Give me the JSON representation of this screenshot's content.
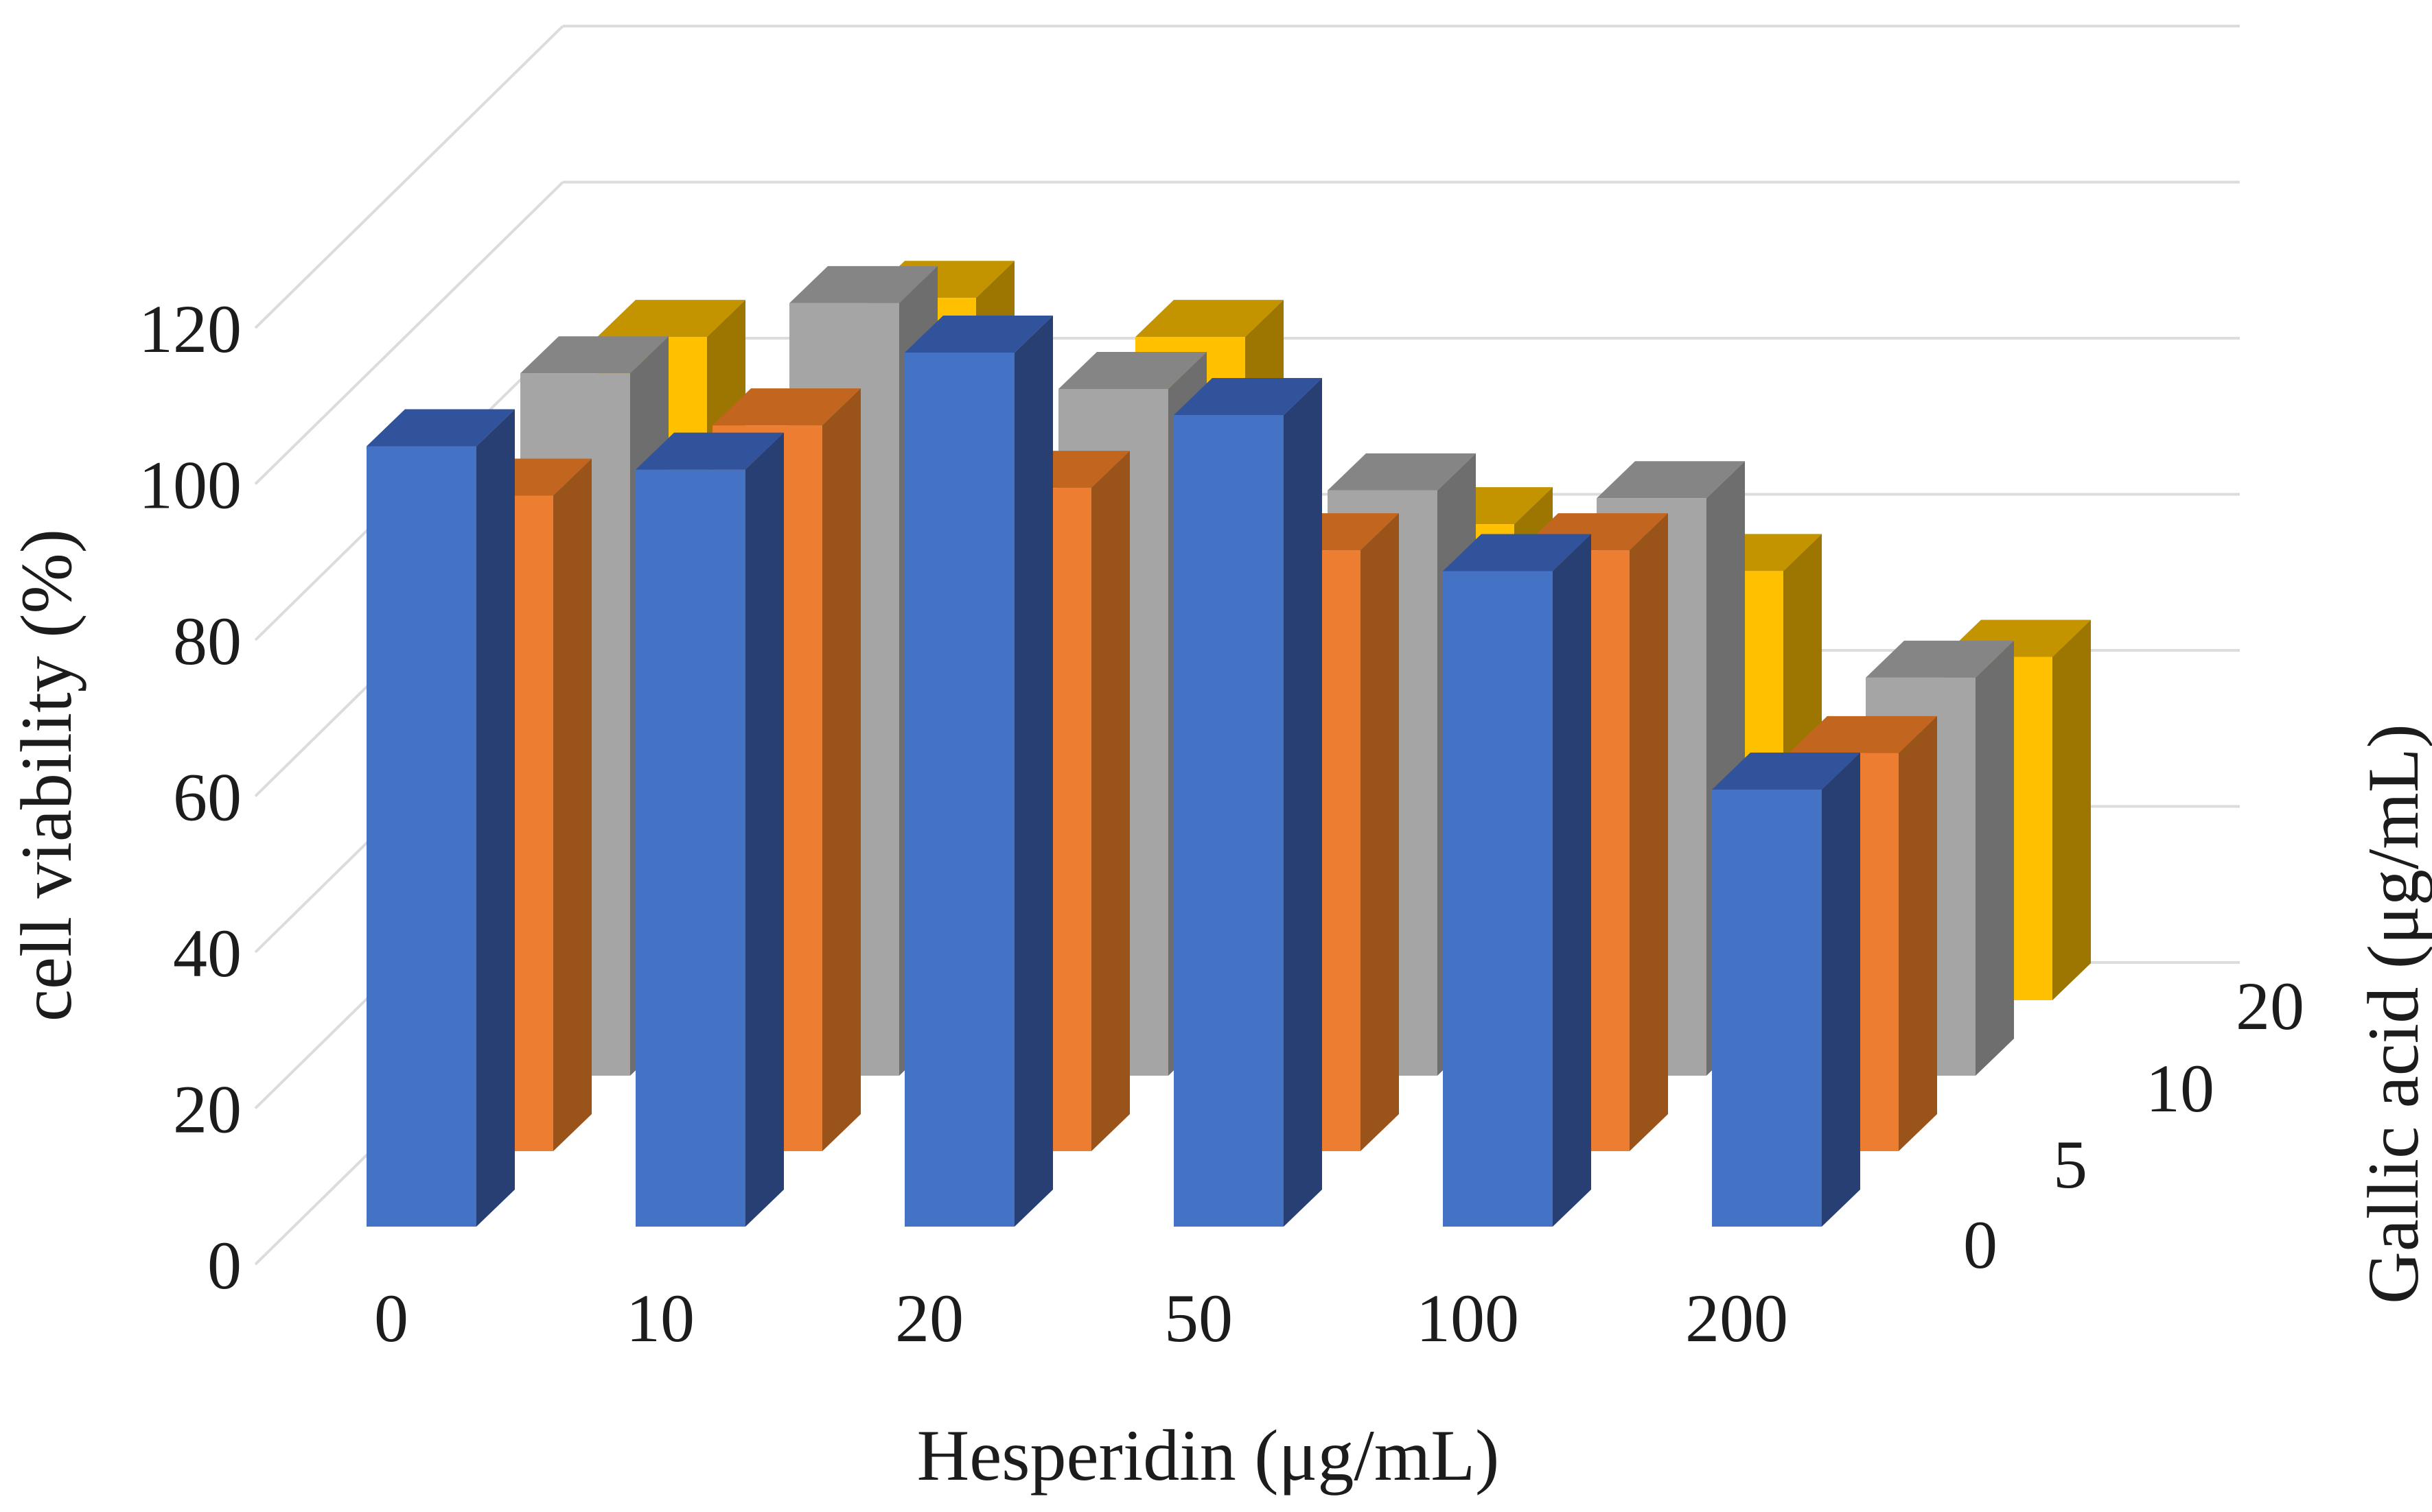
{
  "figure": {
    "background": "#ffffff",
    "text_color": "#1c1c1c",
    "gridline_color": "#DCDCDC"
  },
  "chart_data": {
    "type": "bar",
    "projection": "3d-column",
    "title": "",
    "xlabel": "Hesperidin (μg/mL)",
    "ylabel": "cell viability (%)",
    "zlabel": "Gallic acid (μg/mL)",
    "categories": [
      "0",
      "10",
      "20",
      "50",
      "100",
      "200"
    ],
    "depth_labels": [
      "0",
      "5",
      "10",
      "20"
    ],
    "yticks": [
      "0",
      "20",
      "40",
      "60",
      "80",
      "100",
      "120"
    ],
    "ylim": [
      0,
      120
    ],
    "grid": true,
    "legend_position": "none",
    "series": [
      {
        "name": "Gallic acid 0 μg/mL",
        "depth_label": "0",
        "color": "#4472C4",
        "top_color": "#30539B",
        "side_color": "#273F72",
        "values": [
          100,
          97,
          112,
          104,
          84,
          56
        ]
      },
      {
        "name": "Gallic acid 5 μg/mL",
        "depth_label": "5",
        "color": "#ED7D31",
        "top_color": "#C2661F",
        "side_color": "#9A541A",
        "values": [
          84,
          93,
          85,
          77,
          77,
          51
        ]
      },
      {
        "name": "Gallic acid 10 μg/mL",
        "depth_label": "10",
        "color": "#A5A5A5",
        "top_color": "#858585",
        "side_color": "#6E6E6E",
        "values": [
          90,
          99,
          88,
          75,
          74,
          51
        ]
      },
      {
        "name": "Gallic acid 20 μg/mL",
        "depth_label": "20",
        "color": "#FFC000",
        "top_color": "#C49400",
        "side_color": "#9C7600",
        "values": [
          85,
          90,
          85,
          61,
          55,
          44
        ]
      }
    ]
  }
}
